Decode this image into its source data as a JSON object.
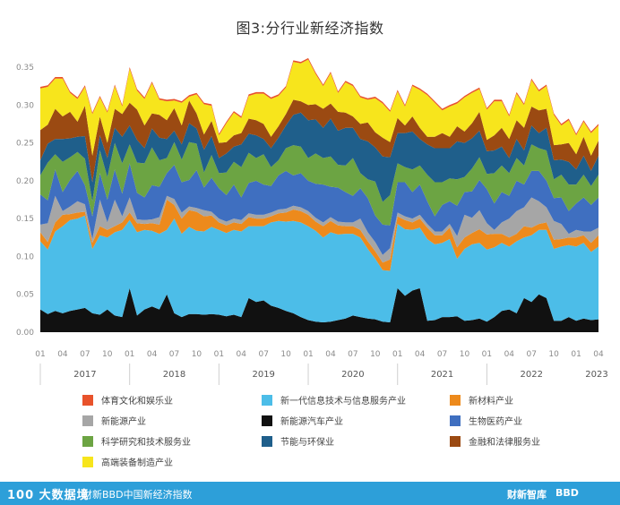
{
  "title": "图3:分行业新经济指数",
  "chart_data": {
    "type": "area",
    "stacked": true,
    "title": "图3:分行业新经济指数",
    "ylim": [
      0,
      0.35
    ],
    "y_ticks": [
      "0.00",
      "0.05",
      "0.10",
      "0.15",
      "0.20",
      "0.25",
      "0.30",
      "0.35"
    ],
    "x_month_labels": [
      "01",
      "04",
      "07",
      "10",
      "01",
      "04",
      "07",
      "10",
      "01",
      "04",
      "07",
      "10",
      "01",
      "04",
      "07",
      "10",
      "01",
      "04",
      "07",
      "10",
      "01",
      "04",
      "07",
      "10",
      "01",
      "04"
    ],
    "x_year_labels": [
      "2017",
      "2018",
      "2019",
      "2020",
      "2021",
      "2022",
      "2023"
    ],
    "x_start": "2017-01",
    "grid": false,
    "legend_position": "bottom",
    "series": [
      {
        "name": "新能源汽车产业",
        "color": "#111111",
        "values": [
          0.03,
          0.024,
          0.028,
          0.025,
          0.028,
          0.03,
          0.032,
          0.025,
          0.023,
          0.03,
          0.022,
          0.02,
          0.058,
          0.022,
          0.03,
          0.034,
          0.03,
          0.05,
          0.025,
          0.02,
          0.024,
          0.024,
          0.023,
          0.024,
          0.023,
          0.021,
          0.023,
          0.02,
          0.045,
          0.04,
          0.042,
          0.035,
          0.032,
          0.028,
          0.025,
          0.02,
          0.016,
          0.014,
          0.013,
          0.014,
          0.016,
          0.018,
          0.022,
          0.02,
          0.018,
          0.017,
          0.014,
          0.013,
          0.058,
          0.048,
          0.055,
          0.058,
          0.015,
          0.016,
          0.02,
          0.02,
          0.021,
          0.015,
          0.016,
          0.018,
          0.014,
          0.02,
          0.028,
          0.03,
          0.025,
          0.045,
          0.04,
          0.05,
          0.045,
          0.015,
          0.015,
          0.02,
          0.015,
          0.018,
          0.016,
          0.017
        ]
      },
      {
        "name": "新一代信息技术与信息服务产业",
        "color": "#4cbde8",
        "values": [
          0.09,
          0.085,
          0.105,
          0.115,
          0.12,
          0.12,
          0.122,
          0.085,
          0.105,
          0.095,
          0.11,
          0.115,
          0.09,
          0.11,
          0.105,
          0.1,
          0.1,
          0.085,
          0.125,
          0.11,
          0.115,
          0.11,
          0.11,
          0.115,
          0.112,
          0.11,
          0.112,
          0.113,
          0.095,
          0.1,
          0.098,
          0.11,
          0.115,
          0.118,
          0.122,
          0.125,
          0.124,
          0.12,
          0.112,
          0.118,
          0.113,
          0.112,
          0.108,
          0.105,
          0.092,
          0.08,
          0.068,
          0.068,
          0.085,
          0.088,
          0.08,
          0.08,
          0.108,
          0.1,
          0.098,
          0.103,
          0.076,
          0.095,
          0.1,
          0.1,
          0.095,
          0.092,
          0.09,
          0.083,
          0.095,
          0.08,
          0.088,
          0.085,
          0.09,
          0.095,
          0.098,
          0.095,
          0.098,
          0.1,
          0.09,
          0.096
        ]
      },
      {
        "name": "新材料产业",
        "color": "#ed8a1c",
        "values": [
          0.012,
          0.01,
          0.012,
          0.015,
          0.008,
          0.008,
          0.005,
          0.008,
          0.012,
          0.01,
          0.008,
          0.01,
          0.01,
          0.012,
          0.008,
          0.01,
          0.012,
          0.04,
          0.018,
          0.02,
          0.022,
          0.025,
          0.02,
          0.015,
          0.01,
          0.01,
          0.01,
          0.01,
          0.012,
          0.01,
          0.01,
          0.008,
          0.01,
          0.012,
          0.015,
          0.015,
          0.015,
          0.012,
          0.015,
          0.015,
          0.012,
          0.01,
          0.01,
          0.01,
          0.01,
          0.01,
          0.01,
          0.015,
          0.01,
          0.012,
          0.01,
          0.012,
          0.015,
          0.012,
          0.01,
          0.015,
          0.015,
          0.015,
          0.015,
          0.018,
          0.02,
          0.018,
          0.012,
          0.012,
          0.01,
          0.015,
          0.01,
          0.008,
          0.01,
          0.012,
          0.01,
          0.01,
          0.012,
          0.01,
          0.012,
          0.015
        ]
      },
      {
        "name": "新能源产业",
        "color": "#a6a6a6",
        "values": [
          0.01,
          0.025,
          0.035,
          0.005,
          0.01,
          0.015,
          0.01,
          0.005,
          0.035,
          0.01,
          0.035,
          0.008,
          0.02,
          0.005,
          0.005,
          0.005,
          0.01,
          0.005,
          0.008,
          0.008,
          0.005,
          0.005,
          0.008,
          0.005,
          0.005,
          0.005,
          0.005,
          0.005,
          0.005,
          0.005,
          0.005,
          0.005,
          0.005,
          0.005,
          0.005,
          0.005,
          0.005,
          0.005,
          0.005,
          0.005,
          0.005,
          0.005,
          0.005,
          0.015,
          0.012,
          0.012,
          0.01,
          0.015,
          0.005,
          0.005,
          0.005,
          0.005,
          0.005,
          0.005,
          0.005,
          0.005,
          0.015,
          0.03,
          0.02,
          0.025,
          0.015,
          0.005,
          0.015,
          0.025,
          0.03,
          0.025,
          0.04,
          0.03,
          0.02,
          0.025,
          0.02,
          0.005,
          0.01,
          0.005,
          0.015,
          0.01
        ]
      },
      {
        "name": "生物医药产业",
        "color": "#3f6fc0",
        "values": [
          0.04,
          0.03,
          0.035,
          0.025,
          0.035,
          0.04,
          0.025,
          0.03,
          0.035,
          0.03,
          0.04,
          0.03,
          0.045,
          0.035,
          0.03,
          0.045,
          0.04,
          0.03,
          0.045,
          0.04,
          0.035,
          0.05,
          0.03,
          0.045,
          0.04,
          0.035,
          0.045,
          0.03,
          0.04,
          0.045,
          0.04,
          0.035,
          0.045,
          0.05,
          0.04,
          0.045,
          0.04,
          0.045,
          0.05,
          0.04,
          0.045,
          0.04,
          0.035,
          0.04,
          0.045,
          0.035,
          0.04,
          0.03,
          0.04,
          0.045,
          0.035,
          0.04,
          0.03,
          0.02,
          0.035,
          0.03,
          0.04,
          0.03,
          0.035,
          0.04,
          0.045,
          0.035,
          0.04,
          0.03,
          0.04,
          0.03,
          0.035,
          0.04,
          0.035,
          0.03,
          0.035,
          0.03,
          0.035,
          0.045,
          0.035,
          0.04
        ]
      },
      {
        "name": "科学研究和技术服务业",
        "color": "#6ca443",
        "values": [
          0.025,
          0.05,
          0.02,
          0.04,
          0.03,
          0.025,
          0.035,
          0.02,
          0.03,
          0.03,
          0.035,
          0.04,
          0.025,
          0.04,
          0.045,
          0.05,
          0.035,
          0.02,
          0.03,
          0.03,
          0.05,
          0.035,
          0.02,
          0.03,
          0.02,
          0.03,
          0.03,
          0.04,
          0.04,
          0.03,
          0.04,
          0.025,
          0.02,
          0.03,
          0.04,
          0.035,
          0.03,
          0.04,
          0.035,
          0.04,
          0.03,
          0.035,
          0.05,
          0.02,
          0.025,
          0.045,
          0.03,
          0.04,
          0.025,
          0.02,
          0.03,
          0.025,
          0.035,
          0.045,
          0.03,
          0.03,
          0.035,
          0.02,
          0.03,
          0.03,
          0.02,
          0.04,
          0.035,
          0.03,
          0.03,
          0.025,
          0.035,
          0.03,
          0.04,
          0.025,
          0.03,
          0.035,
          0.025,
          0.03,
          0.025,
          0.03
        ]
      },
      {
        "name": "节能与环保业",
        "color": "#1f5f8b",
        "values": [
          0.02,
          0.025,
          0.02,
          0.03,
          0.025,
          0.02,
          0.03,
          0.025,
          0.02,
          0.025,
          0.02,
          0.035,
          0.025,
          0.03,
          0.02,
          0.025,
          0.03,
          0.025,
          0.015,
          0.02,
          0.025,
          0.02,
          0.03,
          0.025,
          0.02,
          0.025,
          0.02,
          0.03,
          0.025,
          0.03,
          0.02,
          0.025,
          0.03,
          0.03,
          0.04,
          0.045,
          0.05,
          0.045,
          0.04,
          0.05,
          0.045,
          0.05,
          0.04,
          0.045,
          0.05,
          0.045,
          0.06,
          0.05,
          0.04,
          0.045,
          0.05,
          0.035,
          0.04,
          0.045,
          0.045,
          0.04,
          0.05,
          0.045,
          0.04,
          0.035,
          0.03,
          0.03,
          0.025,
          0.02,
          0.025,
          0.02,
          0.025,
          0.02,
          0.03,
          0.025,
          0.02,
          0.03,
          0.02,
          0.025,
          0.02,
          0.025
        ]
      },
      {
        "name": "金融和法律服务业",
        "color": "#9b4a12",
        "values": [
          0.04,
          0.025,
          0.04,
          0.03,
          0.035,
          0.02,
          0.04,
          0.035,
          0.025,
          0.02,
          0.025,
          0.03,
          0.03,
          0.04,
          0.03,
          0.02,
          0.03,
          0.025,
          0.03,
          0.025,
          0.03,
          0.02,
          0.02,
          0.02,
          0.02,
          0.015,
          0.015,
          0.015,
          0.02,
          0.02,
          0.02,
          0.015,
          0.015,
          0.015,
          0.02,
          0.015,
          0.02,
          0.02,
          0.025,
          0.02,
          0.025,
          0.02,
          0.015,
          0.02,
          0.025,
          0.02,
          0.025,
          0.02,
          0.02,
          0.01,
          0.02,
          0.015,
          0.01,
          0.015,
          0.02,
          0.015,
          0.02,
          0.015,
          0.02,
          0.025,
          0.015,
          0.02,
          0.025,
          0.025,
          0.025,
          0.03,
          0.025,
          0.03,
          0.025,
          0.02,
          0.02,
          0.025,
          0.02,
          0.025,
          0.02,
          0.02
        ]
      },
      {
        "name": "高端装备制造产业",
        "color": "#f7e51c",
        "values": [
          0.055,
          0.05,
          0.04,
          0.05,
          0.025,
          0.03,
          0.025,
          0.055,
          0.025,
          0.04,
          0.03,
          0.01,
          0.045,
          0.025,
          0.035,
          0.04,
          0.02,
          0.025,
          0.01,
          0.03,
          0.005,
          0.025,
          0.04,
          0.02,
          0.01,
          0.025,
          0.03,
          0.02,
          0.03,
          0.035,
          0.04,
          0.05,
          0.04,
          0.035,
          0.05,
          0.05,
          0.06,
          0.04,
          0.03,
          0.04,
          0.025,
          0.04,
          0.04,
          0.035,
          0.03,
          0.045,
          0.045,
          0.04,
          0.035,
          0.025,
          0.04,
          0.05,
          0.055,
          0.045,
          0.03,
          0.04,
          0.03,
          0.045,
          0.04,
          0.03,
          0.04,
          0.045,
          0.035,
          0.03,
          0.035,
          0.03,
          0.035,
          0.025,
          0.03,
          0.04,
          0.025,
          0.03,
          0.025,
          0.02,
          0.03,
          0.02
        ]
      },
      {
        "name": "体育文化和娱乐业",
        "color": "#e8522b",
        "values": [
          0.002,
          0.002,
          0.002,
          0.002,
          0.002,
          0.002,
          0.002,
          0.002,
          0.002,
          0.002,
          0.002,
          0.002,
          0.002,
          0.002,
          0.002,
          0.002,
          0.002,
          0.002,
          0.002,
          0.002,
          0.002,
          0.002,
          0.002,
          0.002,
          0.002,
          0.002,
          0.002,
          0.002,
          0.002,
          0.002,
          0.002,
          0.002,
          0.002,
          0.002,
          0.002,
          0.002,
          0.002,
          0.002,
          0.002,
          0.002,
          0.002,
          0.002,
          0.002,
          0.002,
          0.002,
          0.002,
          0.002,
          0.002,
          0.002,
          0.002,
          0.002,
          0.002,
          0.002,
          0.002,
          0.002,
          0.002,
          0.002,
          0.002,
          0.002,
          0.002,
          0.002,
          0.002,
          0.002,
          0.002,
          0.002,
          0.002,
          0.002,
          0.002,
          0.002,
          0.002,
          0.002,
          0.002,
          0.002,
          0.002,
          0.002,
          0.002
        ]
      }
    ]
  },
  "legend": [
    {
      "label": "体育文化和娱乐业",
      "color": "#e8522b"
    },
    {
      "label": "新一代信息技术与信息服务产业",
      "color": "#4cbde8"
    },
    {
      "label": "新材料产业",
      "color": "#ed8a1c"
    },
    {
      "label": "新能源产业",
      "color": "#a6a6a6"
    },
    {
      "label": "新能源汽车产业",
      "color": "#111111"
    },
    {
      "label": "生物医药产业",
      "color": "#3f6fc0"
    },
    {
      "label": "科学研究和技术服务业",
      "color": "#6ca443"
    },
    {
      "label": "节能与环保业",
      "color": "#1f5f8b"
    },
    {
      "label": "金融和法律服务业",
      "color": "#9b4a12"
    },
    {
      "label": "高端装备制造产业",
      "color": "#f7e51c"
    }
  ],
  "footer": {
    "logo": "100 大数据境",
    "source": "财新BBD中国新经济指数",
    "brand1": "财新智库",
    "brand2": "BBD"
  }
}
